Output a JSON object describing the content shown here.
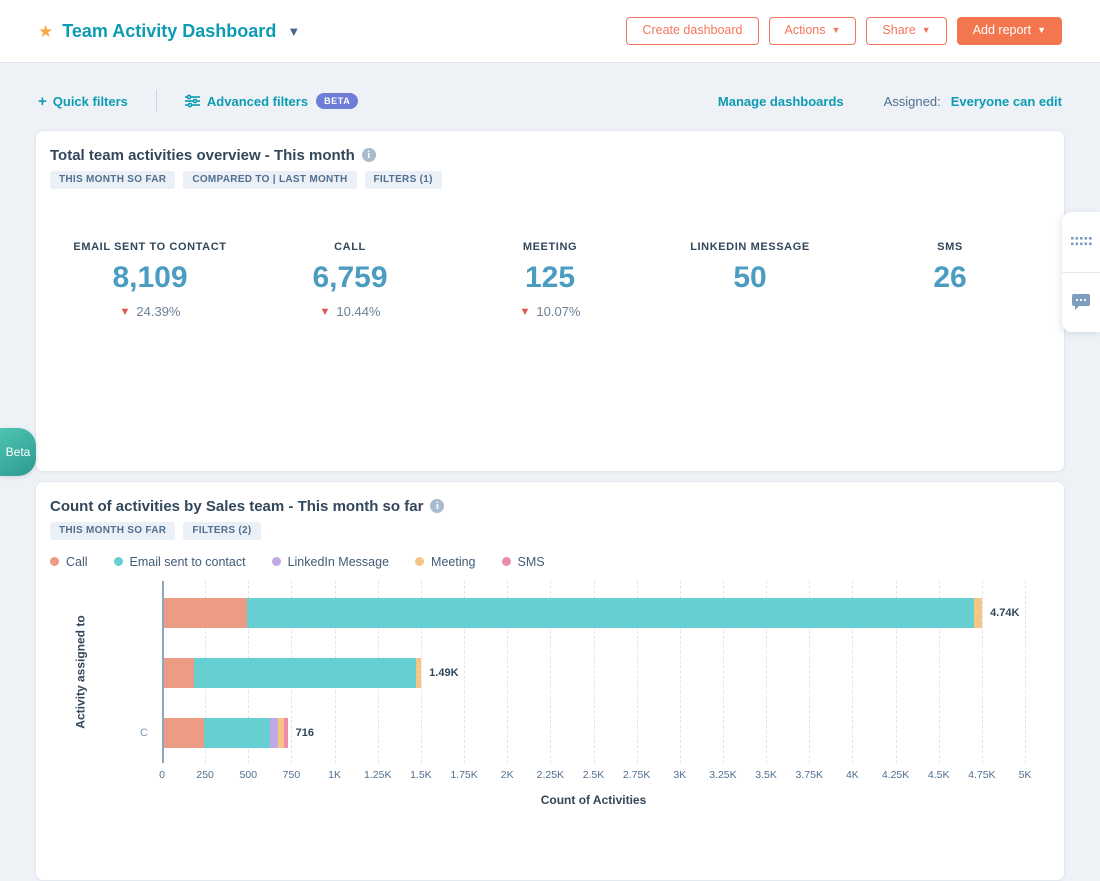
{
  "header": {
    "title": "Team Activity Dashboard",
    "buttons": [
      {
        "label": "Create dashboard",
        "style": "outline",
        "caret": false
      },
      {
        "label": "Actions",
        "style": "outline",
        "caret": true
      },
      {
        "label": "Share",
        "style": "outline",
        "caret": true
      },
      {
        "label": "Add report",
        "style": "solid",
        "caret": true
      }
    ]
  },
  "filter_bar": {
    "quick_filters": "Quick filters",
    "advanced_filters": "Advanced filters",
    "beta_badge": "BETA",
    "manage_dashboards": "Manage dashboards",
    "assigned_label": "Assigned:",
    "assigned_value": "Everyone can edit"
  },
  "overview_card": {
    "title": "Total team activities overview - This month",
    "badges": [
      "THIS MONTH SO FAR",
      "COMPARED TO | LAST MONTH",
      "FILTERS (1)"
    ],
    "kpis": [
      {
        "label": "EMAIL SENT TO CONTACT",
        "value": "8,109",
        "delta": "24.39%",
        "direction": "down"
      },
      {
        "label": "CALL",
        "value": "6,759",
        "delta": "10.44%",
        "direction": "down"
      },
      {
        "label": "MEETING",
        "value": "125",
        "delta": "10.07%",
        "direction": "down"
      },
      {
        "label": "LINKEDIN MESSAGE",
        "value": "50"
      },
      {
        "label": "SMS",
        "value": "26"
      }
    ]
  },
  "activities_card": {
    "title": "Count of activities by Sales team - This month so far",
    "badges": [
      "THIS MONTH SO FAR",
      "FILTERS (2)"
    ],
    "chart_data": {
      "type": "bar",
      "orientation": "horizontal",
      "stacked": true,
      "title": "Count of activities by Sales team - This month so far",
      "categories": [
        "",
        "",
        "C"
      ],
      "series": [
        {
          "name": "Call",
          "color": "#EC9B85",
          "values": [
            480,
            174,
            232
          ]
        },
        {
          "name": "Email sent to contact",
          "color": "#66CFD1",
          "values": [
            4215,
            1288,
            385
          ]
        },
        {
          "name": "LinkedIn Message",
          "color": "#BFA8E3",
          "values": [
            0,
            0,
            46
          ]
        },
        {
          "name": "Meeting",
          "color": "#F4C584",
          "values": [
            45,
            28,
            30
          ]
        },
        {
          "name": "SMS",
          "color": "#EE8CAB",
          "values": [
            0,
            0,
            23
          ]
        }
      ],
      "totals": [
        "4.74K",
        "1.49K",
        "716"
      ],
      "xlabel": "Count of Activities",
      "ylabel": "Activity assigned to",
      "xlim": [
        0,
        5000
      ],
      "xticks": [
        "0",
        "250",
        "500",
        "750",
        "1K",
        "1.25K",
        "1.5K",
        "1.75K",
        "2K",
        "2.25K",
        "2.5K",
        "2.75K",
        "3K",
        "3.25K",
        "3.5K",
        "3.75K",
        "4K",
        "4.25K",
        "4.5K",
        "4.75K",
        "5K"
      ],
      "grid": "dashed-vertical",
      "legend_position": "top"
    }
  },
  "beta_tab": {
    "label": "Beta"
  },
  "colors": {
    "accent_orange": "#F4764F",
    "link_teal": "#0D9BB3",
    "kpi_blue": "#4B9CC1",
    "delta_red": "#E0564F",
    "badge_bg": "#EAF0F6",
    "beta_pill": "#6E7ED8",
    "beta_tab": "#3BAD9F",
    "page_bg": "#EEF2F7"
  }
}
